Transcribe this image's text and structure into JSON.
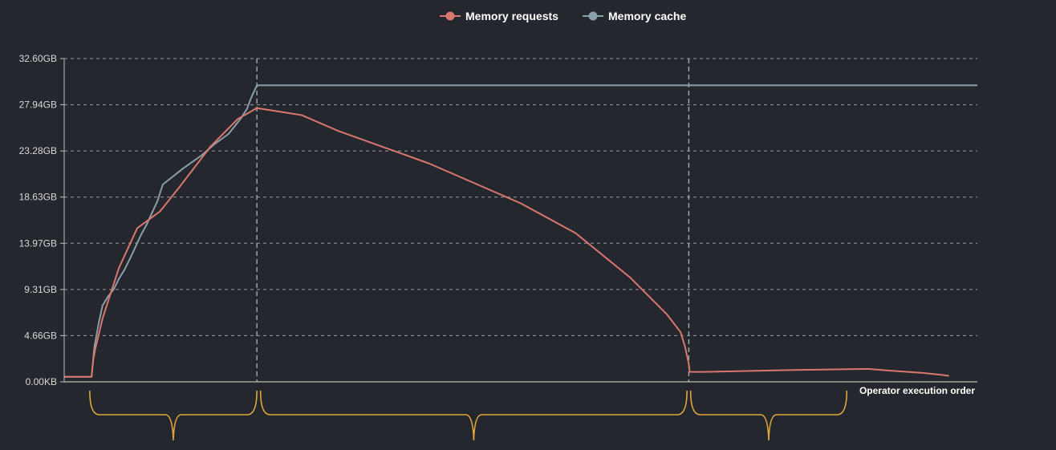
{
  "chart_data": {
    "type": "line",
    "title": "",
    "xlabel": "Operator execution order",
    "ylabel": "",
    "x_range": [
      0,
      1000
    ],
    "ylim": [
      0,
      32.6
    ],
    "y_ticks": [
      {
        "value": 0,
        "label": "0.00KB"
      },
      {
        "value": 4.66,
        "label": "4.66GB"
      },
      {
        "value": 9.31,
        "label": "9.31GB"
      },
      {
        "value": 13.97,
        "label": "13.97GB"
      },
      {
        "value": 18.63,
        "label": "18.63GB"
      },
      {
        "value": 23.28,
        "label": "23.28GB"
      },
      {
        "value": 27.94,
        "label": "27.94GB"
      },
      {
        "value": 32.6,
        "label": "32.60GB"
      }
    ],
    "grid": true,
    "legend_position": "top-center",
    "vertical_markers": [
      211,
      684
    ],
    "brackets": [
      [
        28,
        211
      ],
      [
        215,
        682
      ],
      [
        686,
        857
      ]
    ],
    "series": [
      {
        "name": "Memory requests",
        "color": "#d9776f",
        "points": [
          [
            0,
            0.5
          ],
          [
            30,
            0.5
          ],
          [
            31,
            1.5
          ],
          [
            32,
            2.3
          ],
          [
            34,
            3.3
          ],
          [
            38,
            4.8
          ],
          [
            42,
            6.4
          ],
          [
            60,
            11.5
          ],
          [
            80,
            15.5
          ],
          [
            105,
            17.2
          ],
          [
            125,
            19.5
          ],
          [
            160,
            23.7
          ],
          [
            190,
            26.5
          ],
          [
            211,
            27.6
          ],
          [
            260,
            26.9
          ],
          [
            300,
            25.3
          ],
          [
            400,
            22.0
          ],
          [
            500,
            18.0
          ],
          [
            560,
            15.0
          ],
          [
            620,
            10.5
          ],
          [
            660,
            6.8
          ],
          [
            675,
            5.0
          ],
          [
            680,
            3.5
          ],
          [
            684,
            1.8
          ],
          [
            685,
            1.0
          ],
          [
            700,
            1.0
          ],
          [
            800,
            1.2
          ],
          [
            880,
            1.3
          ],
          [
            908,
            1.1
          ],
          [
            940,
            0.9
          ],
          [
            960,
            0.7
          ],
          [
            969,
            0.6
          ]
        ]
      },
      {
        "name": "Memory cache",
        "color": "#8aa0a8",
        "points": [
          [
            0,
            0.5
          ],
          [
            30,
            0.5
          ],
          [
            33,
            3.5
          ],
          [
            38,
            6.0
          ],
          [
            42,
            7.7
          ],
          [
            48,
            8.6
          ],
          [
            54,
            9.3
          ],
          [
            60,
            10.4
          ],
          [
            66,
            11.3
          ],
          [
            72,
            12.4
          ],
          [
            78,
            13.6
          ],
          [
            84,
            14.8
          ],
          [
            90,
            15.8
          ],
          [
            96,
            17.0
          ],
          [
            102,
            18.2
          ],
          [
            108,
            19.9
          ],
          [
            130,
            21.5
          ],
          [
            150,
            22.8
          ],
          [
            165,
            24.0
          ],
          [
            180,
            25.0
          ],
          [
            193,
            26.5
          ],
          [
            200,
            27.5
          ],
          [
            205,
            28.7
          ],
          [
            211,
            29.9
          ],
          [
            1000,
            29.9
          ]
        ]
      }
    ]
  }
}
